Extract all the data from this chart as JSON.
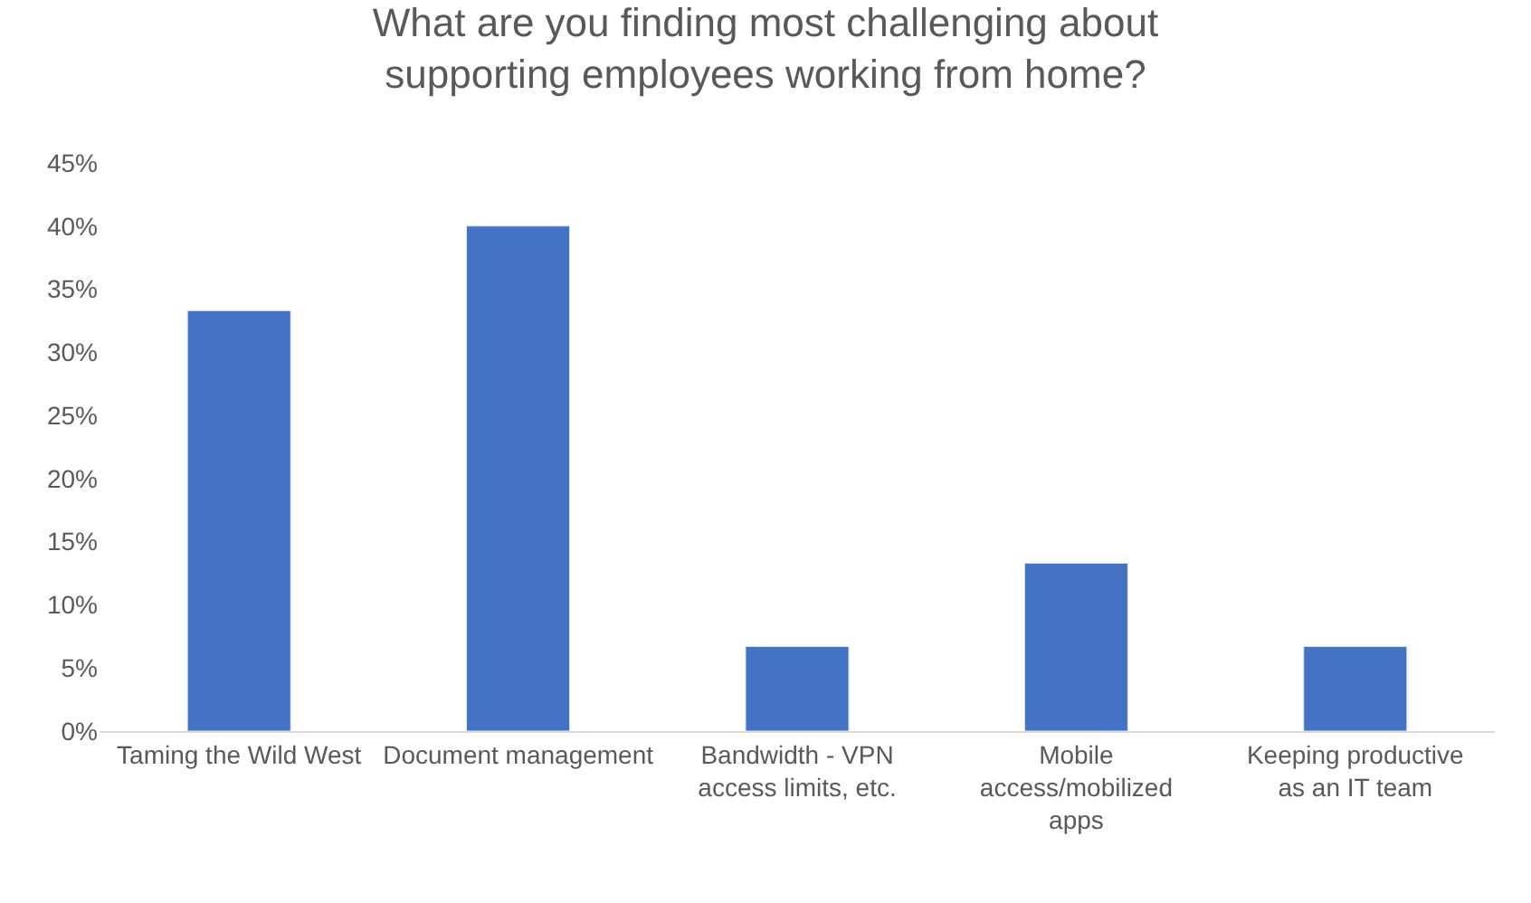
{
  "chart_data": {
    "type": "bar",
    "title": "What are you finding most challenging about supporting employees working from home?",
    "categories": [
      "Taming the Wild West",
      "Document management",
      "Bandwidth - VPN access limits, etc.",
      "Mobile access/mobilized apps",
      "Keeping productive as an IT team"
    ],
    "values": [
      33.3,
      40,
      6.7,
      13.3,
      6.7
    ],
    "color": "#4472c4",
    "ylim": [
      0,
      45
    ],
    "yticks": [
      {
        "value": 0,
        "label": "0%"
      },
      {
        "value": 5,
        "label": "5%"
      },
      {
        "value": 10,
        "label": "10%"
      },
      {
        "value": 15,
        "label": "15%"
      },
      {
        "value": 20,
        "label": "20%"
      },
      {
        "value": 25,
        "label": "25%"
      },
      {
        "value": 30,
        "label": "30%"
      },
      {
        "value": 35,
        "label": "35%"
      },
      {
        "value": 40,
        "label": "40%"
      },
      {
        "value": 45,
        "label": "45%"
      }
    ],
    "grid": false,
    "legend": false
  }
}
